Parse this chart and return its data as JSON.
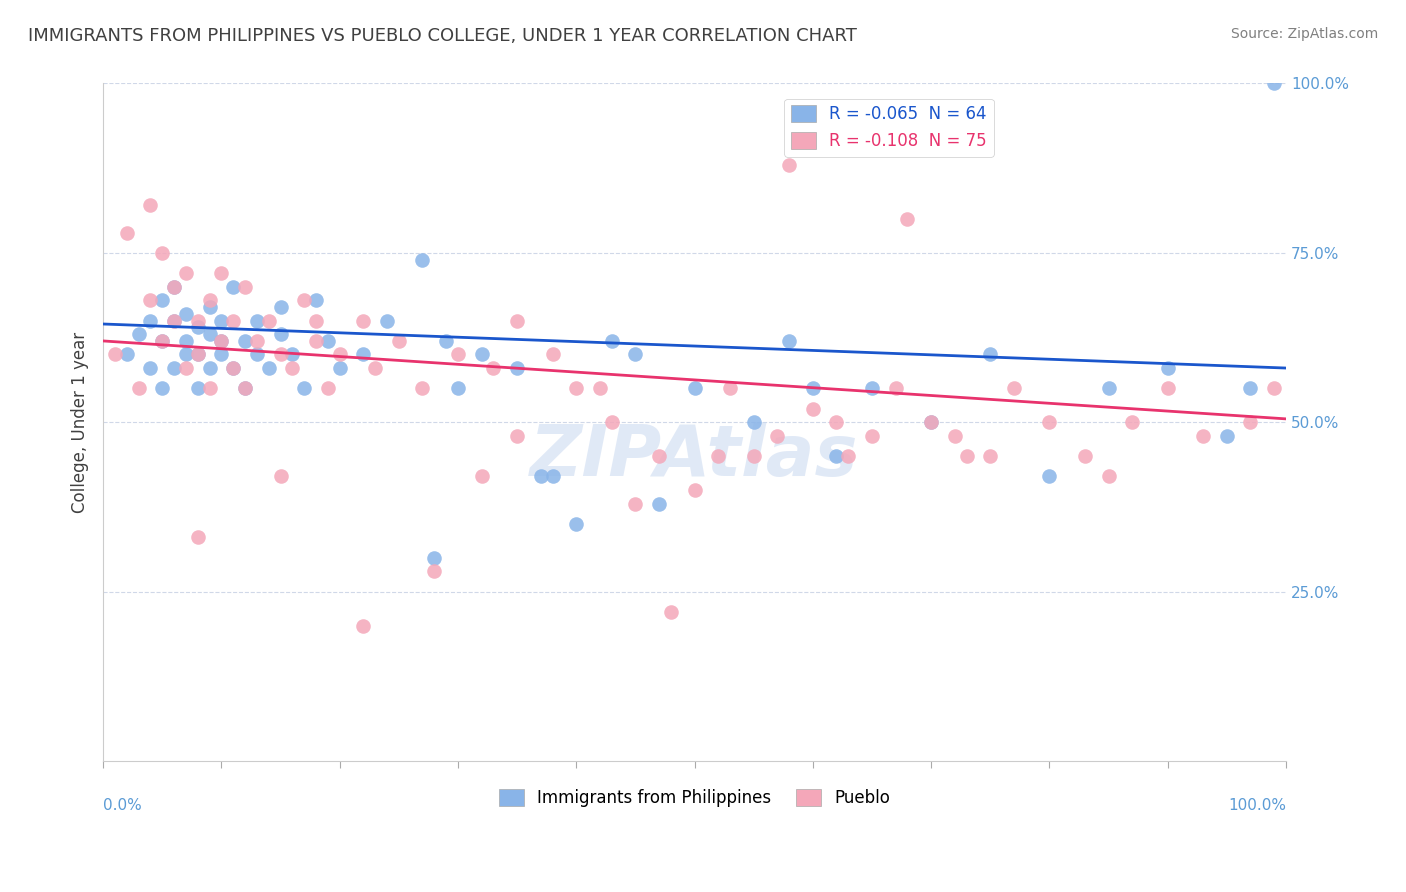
{
  "title": "IMMIGRANTS FROM PHILIPPINES VS PUEBLO COLLEGE, UNDER 1 YEAR CORRELATION CHART",
  "source": "Source: ZipAtlas.com",
  "ylabel": "College, Under 1 year",
  "legend_blue_label": "R = -0.065  N = 64",
  "legend_pink_label": "R = -0.108  N = 75",
  "legend_bottom_blue": "Immigrants from Philippines",
  "legend_bottom_pink": "Pueblo",
  "blue_color": "#89b4e8",
  "pink_color": "#f4a7b9",
  "blue_line_color": "#1a56cc",
  "pink_line_color": "#e8336d",
  "title_color": "#404040",
  "source_color": "#808080",
  "tick_label_color": "#5b9bd5",
  "background_color": "#ffffff",
  "grid_color": "#d0d8e8",
  "watermark_color": "#c8d8f0",
  "blue_scatter_x": [
    0.02,
    0.03,
    0.04,
    0.04,
    0.05,
    0.05,
    0.05,
    0.06,
    0.06,
    0.06,
    0.07,
    0.07,
    0.07,
    0.08,
    0.08,
    0.08,
    0.09,
    0.09,
    0.09,
    0.1,
    0.1,
    0.1,
    0.11,
    0.11,
    0.12,
    0.12,
    0.13,
    0.13,
    0.14,
    0.15,
    0.15,
    0.16,
    0.17,
    0.18,
    0.19,
    0.2,
    0.22,
    0.24,
    0.27,
    0.29,
    0.3,
    0.32,
    0.35,
    0.37,
    0.4,
    0.43,
    0.47,
    0.5,
    0.55,
    0.58,
    0.62,
    0.65,
    0.7,
    0.75,
    0.8,
    0.85,
    0.9,
    0.95,
    0.97,
    0.99,
    0.6,
    0.45,
    0.38,
    0.28
  ],
  "blue_scatter_y": [
    0.6,
    0.63,
    0.65,
    0.58,
    0.62,
    0.68,
    0.55,
    0.7,
    0.65,
    0.58,
    0.66,
    0.62,
    0.6,
    0.64,
    0.6,
    0.55,
    0.63,
    0.58,
    0.67,
    0.62,
    0.65,
    0.6,
    0.58,
    0.7,
    0.62,
    0.55,
    0.6,
    0.65,
    0.58,
    0.63,
    0.67,
    0.6,
    0.55,
    0.68,
    0.62,
    0.58,
    0.6,
    0.65,
    0.74,
    0.62,
    0.55,
    0.6,
    0.58,
    0.42,
    0.35,
    0.62,
    0.38,
    0.55,
    0.5,
    0.62,
    0.45,
    0.55,
    0.5,
    0.6,
    0.42,
    0.55,
    0.58,
    0.48,
    0.55,
    1.0,
    0.55,
    0.6,
    0.42,
    0.3
  ],
  "pink_scatter_x": [
    0.01,
    0.02,
    0.03,
    0.04,
    0.04,
    0.05,
    0.05,
    0.06,
    0.06,
    0.07,
    0.07,
    0.08,
    0.08,
    0.09,
    0.09,
    0.1,
    0.1,
    0.11,
    0.11,
    0.12,
    0.12,
    0.13,
    0.14,
    0.15,
    0.16,
    0.17,
    0.18,
    0.19,
    0.2,
    0.22,
    0.23,
    0.25,
    0.27,
    0.3,
    0.33,
    0.35,
    0.38,
    0.4,
    0.43,
    0.47,
    0.5,
    0.53,
    0.57,
    0.6,
    0.63,
    0.67,
    0.7,
    0.73,
    0.77,
    0.8,
    0.83,
    0.87,
    0.9,
    0.93,
    0.97,
    0.99,
    0.45,
    0.35,
    0.28,
    0.22,
    0.15,
    0.08,
    0.55,
    0.65,
    0.75,
    0.85,
    0.42,
    0.52,
    0.62,
    0.72,
    0.32,
    0.18,
    0.68,
    0.48,
    0.58
  ],
  "pink_scatter_y": [
    0.6,
    0.78,
    0.55,
    0.82,
    0.68,
    0.75,
    0.62,
    0.65,
    0.7,
    0.58,
    0.72,
    0.65,
    0.6,
    0.68,
    0.55,
    0.62,
    0.72,
    0.65,
    0.58,
    0.7,
    0.55,
    0.62,
    0.65,
    0.6,
    0.58,
    0.68,
    0.62,
    0.55,
    0.6,
    0.65,
    0.58,
    0.62,
    0.55,
    0.6,
    0.58,
    0.65,
    0.6,
    0.55,
    0.5,
    0.45,
    0.4,
    0.55,
    0.48,
    0.52,
    0.45,
    0.55,
    0.5,
    0.45,
    0.55,
    0.5,
    0.45,
    0.5,
    0.55,
    0.48,
    0.5,
    0.55,
    0.38,
    0.48,
    0.28,
    0.2,
    0.42,
    0.33,
    0.45,
    0.48,
    0.45,
    0.42,
    0.55,
    0.45,
    0.5,
    0.48,
    0.42,
    0.65,
    0.8,
    0.22,
    0.88
  ],
  "xmin": 0.0,
  "xmax": 1.0,
  "ymin": 0.0,
  "ymax": 1.0,
  "blue_line_y0": 0.645,
  "blue_line_y1": 0.58,
  "pink_line_y0": 0.62,
  "pink_line_y1": 0.505,
  "ytick_positions": [
    0.25,
    0.5,
    0.75,
    1.0
  ],
  "ytick_labels": [
    "25.0%",
    "50.0%",
    "75.0%",
    "100.0%"
  ]
}
